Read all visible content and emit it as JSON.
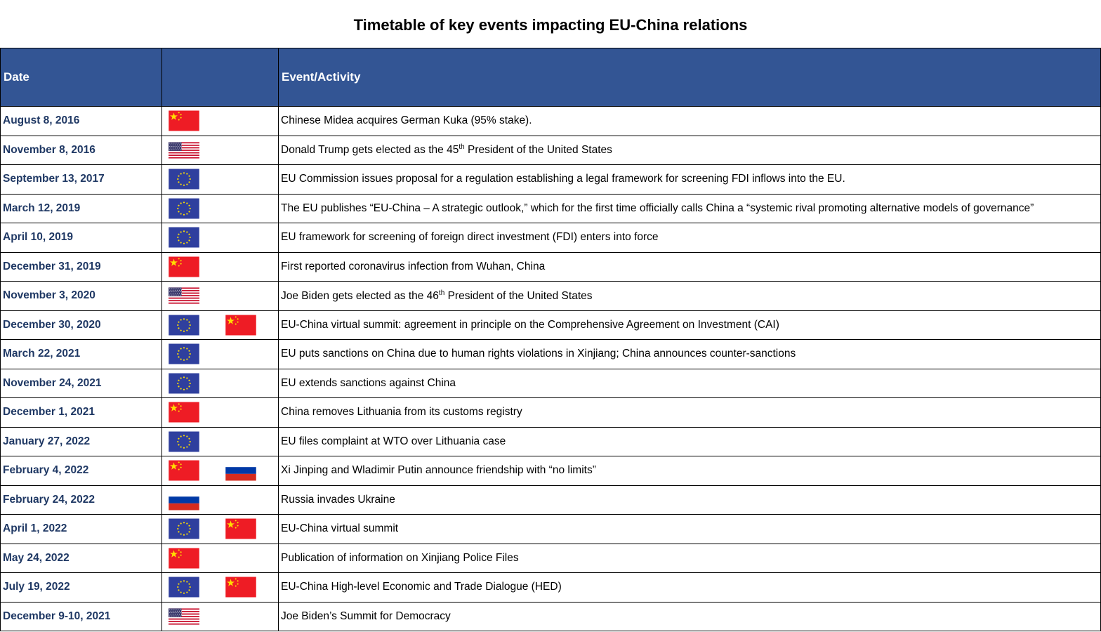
{
  "title": "Timetable of key events impacting EU-China relations",
  "headers": {
    "date": "Date",
    "flags": "",
    "event": "Event/Activity"
  },
  "rows": [
    {
      "date": "August 8, 2016",
      "flags": [
        "china"
      ],
      "event": "Chinese Midea acquires German Kuka (95% stake)."
    },
    {
      "date": "November 8, 2016",
      "flags": [
        "usa"
      ],
      "event": "Donald Trump gets elected as the 45",
      "sup": "th",
      "event_tail": " President of the United States"
    },
    {
      "date": "September 13, 2017",
      "flags": [
        "eu"
      ],
      "event": "EU Commission issues proposal for a regulation establishing a legal framework for screening FDI inflows into the EU."
    },
    {
      "date": "March 12, 2019",
      "flags": [
        "eu"
      ],
      "event": "The EU publishes “EU-China – A strategic outlook,” which for the first time officially calls China a “systemic rival promoting alternative models of governance”"
    },
    {
      "date": "April 10, 2019",
      "flags": [
        "eu"
      ],
      "event": "EU framework for screening of foreign direct investment (FDI) enters into force"
    },
    {
      "date": "December 31, 2019",
      "flags": [
        "china"
      ],
      "event": "First reported coronavirus infection from Wuhan, China"
    },
    {
      "date": "November 3, 2020",
      "flags": [
        "usa"
      ],
      "event": "Joe Biden gets elected as the 46",
      "sup": "th",
      "event_tail": " President of the United States"
    },
    {
      "date": "December 30, 2020",
      "flags": [
        "eu",
        "china"
      ],
      "event": "EU-China virtual summit: agreement in principle on the Comprehensive Agreement on Investment (CAI)"
    },
    {
      "date": "March 22, 2021",
      "flags": [
        "eu"
      ],
      "event": "EU puts sanctions on China due to human rights violations in Xinjiang; China announces counter-sanctions"
    },
    {
      "date": "November 24, 2021",
      "flags": [
        "eu"
      ],
      "event": "EU extends sanctions against China"
    },
    {
      "date": "December 1, 2021",
      "flags": [
        "china"
      ],
      "event": "China removes Lithuania from its customs registry"
    },
    {
      "date": "January 27, 2022",
      "flags": [
        "eu"
      ],
      "event": "EU files complaint at WTO over Lithuania case"
    },
    {
      "date": "February 4, 2022",
      "flags": [
        "china",
        "russia"
      ],
      "event": "Xi Jinping and Wladimir Putin announce friendship with “no limits”"
    },
    {
      "date": "February 24, 2022",
      "flags": [
        "russia"
      ],
      "event": "Russia invades Ukraine"
    },
    {
      "date": "April 1, 2022",
      "flags": [
        "eu",
        "china"
      ],
      "event": "EU-China virtual summit"
    },
    {
      "date": "May 24, 2022",
      "flags": [
        "china"
      ],
      "event": "Publication of information on Xinjiang Police Files"
    },
    {
      "date": "July 19, 2022",
      "flags": [
        "eu",
        "china"
      ],
      "event": "EU-China High-level Economic and Trade Dialogue (HED)"
    },
    {
      "date": "December 9-10, 2021",
      "flags": [
        "usa"
      ],
      "event": "Joe Biden’s Summit for Democracy"
    }
  ],
  "colors": {
    "header_bg": "#335594",
    "date_text": "#1f3864",
    "eu_blue": "#2f3f9e",
    "china_red": "#ee1c25",
    "star_yellow": "#ffde00"
  }
}
